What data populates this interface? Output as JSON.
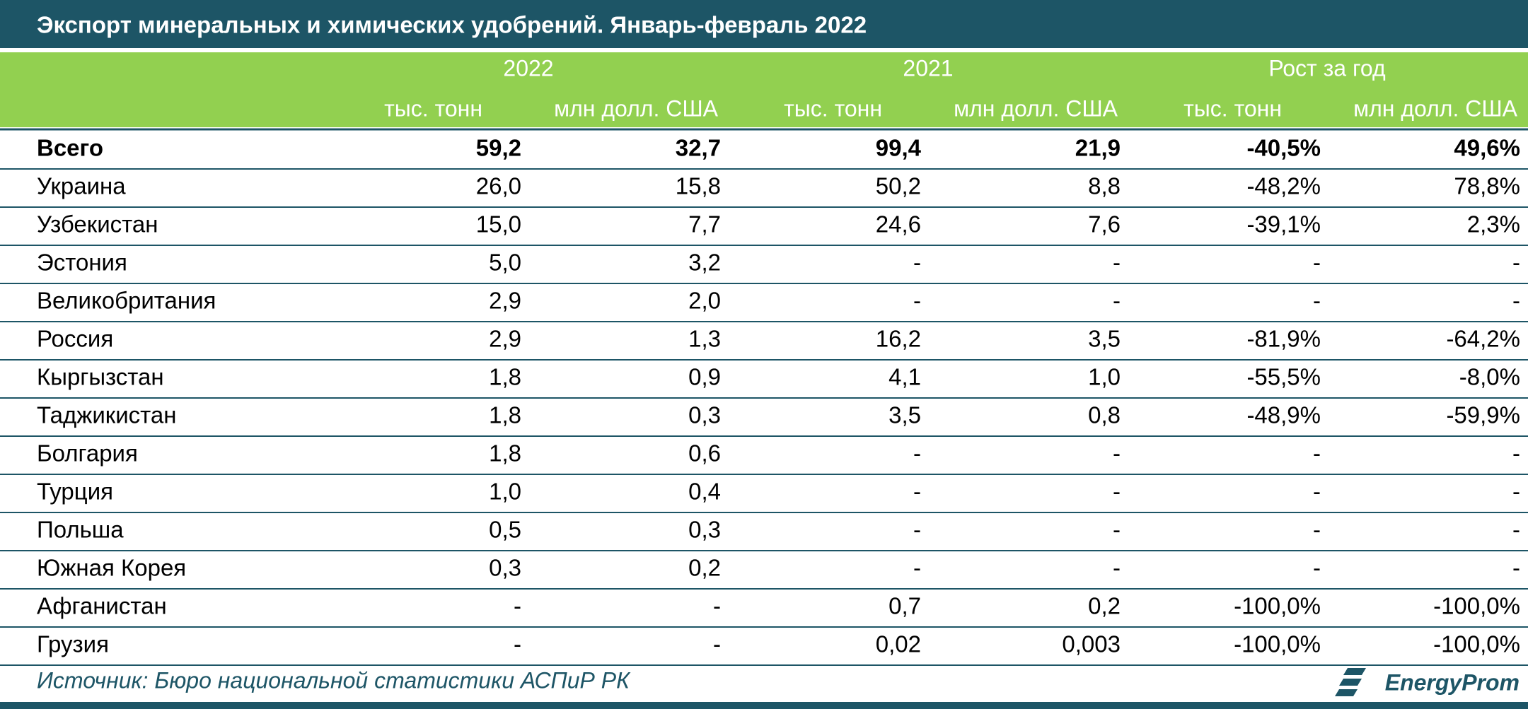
{
  "title": "Экспорт минеральных и химических удобрений. Январь-февраль 2022",
  "header": {
    "groups": [
      "2022",
      "2021",
      "Рост за год"
    ],
    "units": [
      "тыс. тонн",
      "млн долл. США",
      "тыс. тонн",
      "млн долл. США",
      "тыс. тонн",
      "млн долл. США"
    ]
  },
  "table": {
    "rows": [
      [
        "Всего",
        "59,2",
        "32,7",
        "99,4",
        "21,9",
        "-40,5%",
        "49,6%"
      ],
      [
        "Украина",
        "26,0",
        "15,8",
        "50,2",
        "8,8",
        "-48,2%",
        "78,8%"
      ],
      [
        "Узбекистан",
        "15,0",
        "7,7",
        "24,6",
        "7,6",
        "-39,1%",
        "2,3%"
      ],
      [
        "Эстония",
        "5,0",
        "3,2",
        "-",
        "-",
        "-",
        "-"
      ],
      [
        "Великобритания",
        "2,9",
        "2,0",
        "-",
        "-",
        "-",
        "-"
      ],
      [
        "Россия",
        "2,9",
        "1,3",
        "16,2",
        "3,5",
        "-81,9%",
        "-64,2%"
      ],
      [
        "Кыргызстан",
        "1,8",
        "0,9",
        "4,1",
        "1,0",
        "-55,5%",
        "-8,0%"
      ],
      [
        "Таджикистан",
        "1,8",
        "0,3",
        "3,5",
        "0,8",
        "-48,9%",
        "-59,9%"
      ],
      [
        "Болгария",
        "1,8",
        "0,6",
        "-",
        "-",
        "-",
        "-"
      ],
      [
        "Турция",
        "1,0",
        "0,4",
        "-",
        "-",
        "-",
        "-"
      ],
      [
        "Польша",
        "0,5",
        "0,3",
        "-",
        "-",
        "-",
        "-"
      ],
      [
        "Южная Корея",
        "0,3",
        "0,2",
        "-",
        "-",
        "-",
        "-"
      ],
      [
        "Афганистан",
        "-",
        "-",
        "0,7",
        "0,2",
        "-100,0%",
        "-100,0%"
      ],
      [
        "Грузия",
        "-",
        "-",
        "0,02",
        "0,003",
        "-100,0%",
        "-100,0%"
      ]
    ]
  },
  "source": "Источник: Бюро национальной статистики АСПиР РК",
  "logo": "EnergyProm"
}
